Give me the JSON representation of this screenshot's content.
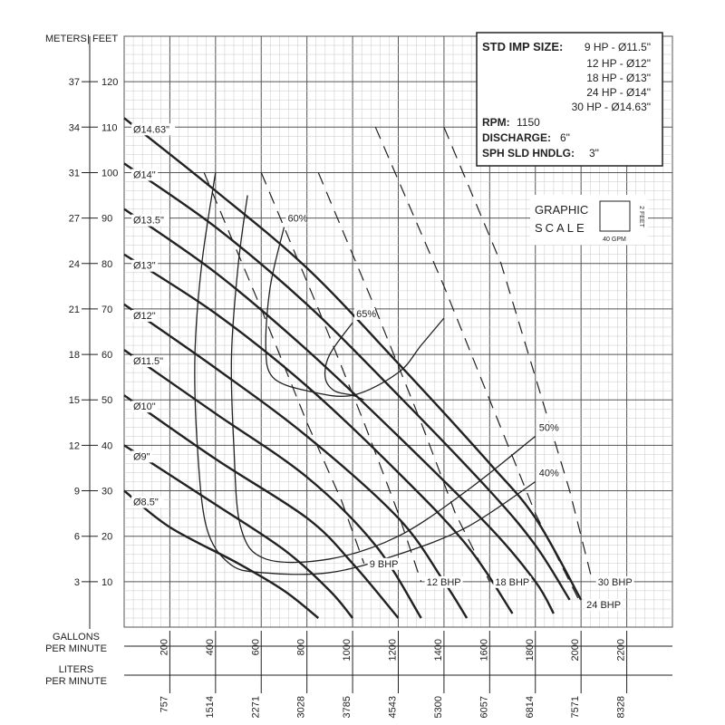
{
  "chart_data": {
    "type": "line",
    "xlabel": "GALLONS PER MINUTE",
    "xlabel_secondary": "LITERS PER MINUTE",
    "ylabel": "FEET",
    "ylabel_secondary": "METERS",
    "axis_header": {
      "meters": "METERS",
      "sep": "|",
      "feet": "FEET"
    },
    "x_axis": {
      "label_line1": "GALLONS",
      "label_line2": "PER MINUTE",
      "ticks_gpm": [
        200,
        400,
        600,
        800,
        1000,
        1200,
        1400,
        1600,
        1800,
        2000,
        2200
      ],
      "tick_labels_gpm": [
        "200",
        "400",
        "600",
        "800",
        "1000",
        "1200",
        "1400",
        "1600",
        "1800",
        "2000",
        "2200"
      ]
    },
    "x_axis_lpm": {
      "label_line1": "LITERS",
      "label_line2": "PER MINUTE",
      "tick_labels_lpm": [
        "757",
        "1514",
        "2271",
        "3028",
        "3785",
        "4543",
        "5300",
        "6057",
        "6814",
        "7571",
        "8328"
      ]
    },
    "y_axis": {
      "ticks_feet": [
        10,
        20,
        30,
        40,
        50,
        60,
        70,
        80,
        90,
        100,
        110,
        120
      ],
      "tick_labels_feet": [
        "10",
        "20",
        "30",
        "40",
        "50",
        "60",
        "70",
        "80",
        "90",
        "100",
        "110",
        "120"
      ],
      "tick_labels_meters": [
        "3",
        "6",
        "9",
        "12",
        "15",
        "18",
        "21",
        "24",
        "27",
        "31",
        "34",
        "37"
      ]
    },
    "xlim": [
      0,
      2400
    ],
    "ylim": [
      0,
      130
    ],
    "grid": true,
    "impeller_curves": [
      {
        "label": "Ø14.63\"",
        "points": [
          [
            0,
            112
          ],
          [
            400,
            96
          ],
          [
            800,
            79
          ],
          [
            1200,
            58
          ],
          [
            1600,
            36
          ],
          [
            1800,
            24
          ],
          [
            2000,
            6
          ]
        ]
      },
      {
        "label": "Ø14\"",
        "points": [
          [
            0,
            102
          ],
          [
            400,
            88
          ],
          [
            800,
            71
          ],
          [
            1200,
            51
          ],
          [
            1600,
            30
          ],
          [
            1800,
            18
          ],
          [
            1950,
            6
          ]
        ]
      },
      {
        "label": "Ø13.5\"",
        "points": [
          [
            0,
            92
          ],
          [
            400,
            78
          ],
          [
            800,
            61
          ],
          [
            1200,
            42
          ],
          [
            1600,
            22
          ],
          [
            1800,
            10
          ],
          [
            1880,
            3
          ]
        ]
      },
      {
        "label": "Ø13\"",
        "points": [
          [
            0,
            82
          ],
          [
            400,
            69
          ],
          [
            800,
            53
          ],
          [
            1200,
            34
          ],
          [
            1500,
            18
          ],
          [
            1700,
            3
          ]
        ]
      },
      {
        "label": "Ø12\"",
        "points": [
          [
            0,
            71
          ],
          [
            400,
            57
          ],
          [
            800,
            42
          ],
          [
            1200,
            24
          ],
          [
            1400,
            10
          ],
          [
            1500,
            2
          ]
        ]
      },
      {
        "label": "Ø11.5\"",
        "points": [
          [
            0,
            61
          ],
          [
            400,
            47
          ],
          [
            800,
            33
          ],
          [
            1100,
            18
          ],
          [
            1300,
            2
          ]
        ]
      },
      {
        "label": "Ø10\"",
        "points": [
          [
            0,
            51
          ],
          [
            400,
            37
          ],
          [
            800,
            24
          ],
          [
            1000,
            14
          ],
          [
            1200,
            2
          ]
        ]
      },
      {
        "label": "Ø9\"",
        "points": [
          [
            0,
            40
          ],
          [
            400,
            27
          ],
          [
            700,
            17
          ],
          [
            900,
            8
          ],
          [
            1000,
            2
          ]
        ]
      },
      {
        "label": "Ø8.5\"",
        "points": [
          [
            0,
            30
          ],
          [
            200,
            22
          ],
          [
            500,
            14
          ],
          [
            700,
            8
          ],
          [
            850,
            2
          ]
        ]
      }
    ],
    "efficiency_curves": [
      {
        "label": "40%",
        "points": [
          [
            400,
            100
          ],
          [
            340,
            80
          ],
          [
            310,
            60
          ],
          [
            320,
            40
          ],
          [
            360,
            22
          ],
          [
            460,
            14
          ],
          [
            600,
            12
          ],
          [
            900,
            12
          ],
          [
            1200,
            16
          ],
          [
            1500,
            22
          ],
          [
            1800,
            32
          ]
        ]
      },
      {
        "label": "50%",
        "points": [
          [
            540,
            95
          ],
          [
            500,
            80
          ],
          [
            470,
            60
          ],
          [
            480,
            40
          ],
          [
            510,
            22
          ],
          [
            620,
            15
          ],
          [
            900,
            15
          ],
          [
            1200,
            20
          ],
          [
            1500,
            30
          ],
          [
            1800,
            42
          ]
        ]
      },
      {
        "label": "60%",
        "points": [
          [
            700,
            88
          ],
          [
            640,
            75
          ],
          [
            620,
            62
          ],
          [
            650,
            55
          ],
          [
            800,
            52
          ],
          [
            1000,
            51
          ],
          [
            1200,
            56
          ],
          [
            1300,
            62
          ],
          [
            1400,
            68
          ]
        ]
      },
      {
        "label": "65%",
        "points": [
          [
            1000,
            67
          ],
          [
            900,
            60
          ],
          [
            880,
            55
          ],
          [
            920,
            52
          ],
          [
            1000,
            51
          ],
          [
            1050,
            50
          ]
        ]
      }
    ],
    "bhp_curves": [
      {
        "label": "9 BHP",
        "points": [
          [
            350,
            100
          ],
          [
            600,
            70
          ],
          [
            800,
            45
          ],
          [
            950,
            28
          ],
          [
            1050,
            14
          ]
        ]
      },
      {
        "label": "12 BHP",
        "points": [
          [
            600,
            100
          ],
          [
            850,
            70
          ],
          [
            1050,
            45
          ],
          [
            1200,
            25
          ],
          [
            1300,
            10
          ]
        ]
      },
      {
        "label": "18 BHP",
        "points": [
          [
            850,
            100
          ],
          [
            1100,
            70
          ],
          [
            1300,
            45
          ],
          [
            1450,
            25
          ],
          [
            1600,
            10
          ]
        ]
      },
      {
        "label": "24 BHP",
        "points": [
          [
            1100,
            110
          ],
          [
            1400,
            75
          ],
          [
            1600,
            50
          ],
          [
            1800,
            25
          ],
          [
            2000,
            5
          ]
        ]
      },
      {
        "label": "30 BHP",
        "points": [
          [
            1400,
            110
          ],
          [
            1650,
            80
          ],
          [
            1800,
            55
          ],
          [
            1950,
            30
          ],
          [
            2050,
            10
          ]
        ]
      }
    ]
  },
  "info_box": {
    "std_imp_size_label": "STD IMP SIZE:",
    "sizes": [
      "9 HP - Ø11.5\"",
      "12 HP - Ø12\"",
      "18 HP - Ø13\"",
      "24 HP - Ø14\"",
      "30 HP - Ø14.63\""
    ],
    "rpm_label": "RPM:",
    "rpm_value": "1150",
    "discharge_label": "DISCHARGE:",
    "discharge_value": "6\"",
    "solids_label": "SPH SLD HNDLG:",
    "solids_value": "3\""
  },
  "graphic_scale": {
    "line1": "GRAPHIC",
    "line2": "SCALE",
    "x_unit": "40 GPM",
    "y_unit": "2 FEET"
  },
  "colors": {
    "grid_minor": "#c8c8c8",
    "grid_major": "#555555",
    "curve": "#222222",
    "box_border": "#222222"
  }
}
